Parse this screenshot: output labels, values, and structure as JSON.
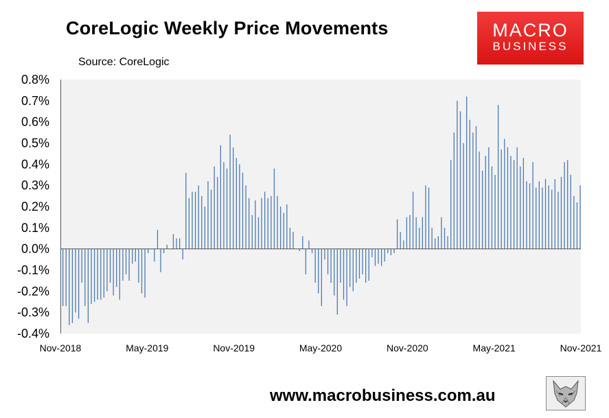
{
  "header": {
    "title": "CoreLogic Weekly Price Movements",
    "source": "Source: CoreLogic"
  },
  "logo": {
    "line1": "MACRO",
    "line2": "BUSINESS"
  },
  "footer": {
    "url": "www.macrobusiness.com.au"
  },
  "icons": {
    "mascot": "wolf-mascot-icon"
  },
  "colors": {
    "bar": "#4a7ab5",
    "plot_bg": "#f2f2f2",
    "logo_red": "#e32424"
  },
  "chart_data": {
    "type": "bar",
    "title": "CoreLogic Weekly Price Movements",
    "ylim": [
      -0.4,
      0.8
    ],
    "yticks": [
      0.8,
      0.7,
      0.6,
      0.5,
      0.4,
      0.3,
      0.2,
      0.1,
      0.0,
      -0.1,
      -0.2,
      -0.3,
      -0.4
    ],
    "ytick_labels": [
      "0.8%",
      "0.7%",
      "0.6%",
      "0.5%",
      "0.4%",
      "0.3%",
      "0.2%",
      "0.1%",
      "0.0%",
      "-0.1%",
      "-0.2%",
      "-0.3%",
      "-0.4%"
    ],
    "xtick_labels": [
      "Nov-2018",
      "May-2019",
      "Nov-2019",
      "May-2020",
      "Nov-2020",
      "May-2021",
      "Nov-2021"
    ],
    "grid": false,
    "legend": "none",
    "series": [
      {
        "values": [
          -0.27,
          -0.27,
          -0.36,
          -0.35,
          -0.3,
          -0.33,
          -0.16,
          -0.27,
          -0.35,
          -0.26,
          -0.25,
          -0.24,
          -0.24,
          -0.23,
          -0.2,
          -0.16,
          -0.22,
          -0.18,
          -0.24,
          -0.15,
          -0.12,
          -0.15,
          -0.07,
          -0.06,
          -0.16,
          -0.21,
          -0.23,
          -0.02,
          0.0,
          -0.06,
          0.09,
          -0.11,
          -0.02,
          0.02,
          0.0,
          0.07,
          0.05,
          0.05,
          -0.05,
          0.36,
          0.24,
          0.27,
          0.27,
          0.3,
          0.25,
          0.2,
          0.32,
          0.28,
          0.39,
          0.34,
          0.49,
          0.41,
          0.38,
          0.54,
          0.48,
          0.43,
          0.4,
          0.36,
          0.3,
          0.24,
          0.16,
          0.23,
          0.15,
          0.24,
          0.27,
          0.24,
          0.25,
          0.38,
          0.25,
          0.2,
          0.17,
          0.21,
          0.1,
          0.08,
          0.0,
          -0.01,
          0.06,
          -0.12,
          0.04,
          -0.02,
          -0.16,
          -0.21,
          -0.27,
          -0.05,
          -0.12,
          -0.16,
          -0.22,
          -0.31,
          -0.16,
          -0.24,
          -0.27,
          -0.18,
          -0.2,
          -0.16,
          -0.14,
          -0.12,
          -0.16,
          -0.15,
          -0.04,
          -0.08,
          -0.07,
          -0.08,
          -0.06,
          -0.02,
          -0.03,
          -0.02,
          0.14,
          0.08,
          0.04,
          0.15,
          0.16,
          0.27,
          0.15,
          0.1,
          0.15,
          0.3,
          0.29,
          0.1,
          0.05,
          0.06,
          0.15,
          0.1,
          0.06,
          0.42,
          0.55,
          0.7,
          0.65,
          0.5,
          0.72,
          0.61,
          0.55,
          0.58,
          0.46,
          0.37,
          0.44,
          0.48,
          0.39,
          0.35,
          0.68,
          0.47,
          0.52,
          0.48,
          0.44,
          0.42,
          0.48,
          0.39,
          0.43,
          0.32,
          0.31,
          0.41,
          0.29,
          0.32,
          0.29,
          0.33,
          0.3,
          0.28,
          0.33,
          0.27,
          0.34,
          0.41,
          0.42,
          0.35,
          0.25,
          0.22,
          0.3
        ]
      }
    ]
  }
}
